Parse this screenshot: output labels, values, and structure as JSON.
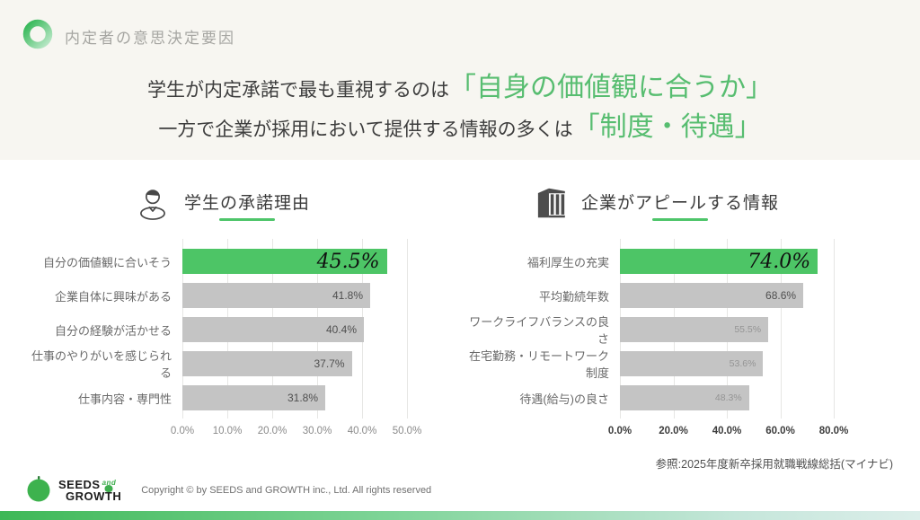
{
  "page": {
    "header_title": "内定者の意思決定要因",
    "headline": {
      "line1_normal": "学生が内定承諾で最も重視するのは",
      "line1_highlight": "「自身の価値観に合うか」",
      "line2_normal": "一方で企業が採用において提供する情報の多くは",
      "line2_highlight": "「制度・待遇」"
    },
    "source": "参照:2025年度新卒採用就職戦線総括(マイナビ)",
    "footer": {
      "logo_word1": "SEEDS",
      "logo_and": "and",
      "logo_word2_grow": "GROW",
      "logo_word2_t": "T",
      "logo_word2_h": "H",
      "copyright": "Copyright © by SEEDS and GROWTH inc., Ltd. All rights reserved"
    },
    "icons": {
      "brand-ring-icon": "green gradient ring",
      "students-icon": "business person bust",
      "company-icon": "office building with columns"
    },
    "colors": {
      "top_band_bg": "#f7f6f1",
      "headline_green": "#57bd70",
      "highlight_bar_green": "#4dc566",
      "bar_gray": "#c4c4c4",
      "bottom_bar_gradient_start": "#3eb857",
      "bottom_bar_gradient_end": "#dceeea"
    }
  },
  "chart_data": [
    {
      "type": "bar",
      "orientation": "horizontal",
      "title": "学生の承諾理由",
      "icon": "students-icon",
      "categories": [
        "自分の価値観に合いそう",
        "企業自体に興味がある",
        "自分の経験が活かせる",
        "仕事のやりがいを感じられる",
        "仕事内容・専門性"
      ],
      "values": [
        45.5,
        41.8,
        40.4,
        37.7,
        31.8
      ],
      "value_labels": [
        "45.5%",
        "41.8%",
        "40.4%",
        "37.7%",
        "31.8%"
      ],
      "highlight_index": 0,
      "xlim": [
        0,
        50
      ],
      "tick_values": [
        0,
        10,
        20,
        30,
        40,
        50
      ],
      "ticks": [
        "0.0%",
        "10.0%",
        "20.0%",
        "30.0%",
        "40.0%",
        "50.0%"
      ],
      "grid": true,
      "legend": "none"
    },
    {
      "type": "bar",
      "orientation": "horizontal",
      "title": "企業がアピールする情報",
      "icon": "company-icon",
      "categories": [
        "福利厚生の充実",
        "平均勤続年数",
        "ワークライフバランスの良さ",
        "在宅勤務・リモートワーク制度",
        "待遇(給与)の良さ"
      ],
      "values": [
        74.0,
        68.6,
        55.5,
        53.6,
        48.3
      ],
      "value_labels": [
        "74.0%",
        "68.6%",
        "55.5%",
        "53.6%",
        "48.3%"
      ],
      "highlight_index": 0,
      "xlim": [
        0,
        80
      ],
      "tick_values": [
        0,
        20,
        40,
        60,
        80
      ],
      "ticks": [
        "0.0%",
        "20.0%",
        "40.0%",
        "60.0%",
        "80.0%"
      ],
      "grid": true,
      "legend": "none"
    }
  ]
}
